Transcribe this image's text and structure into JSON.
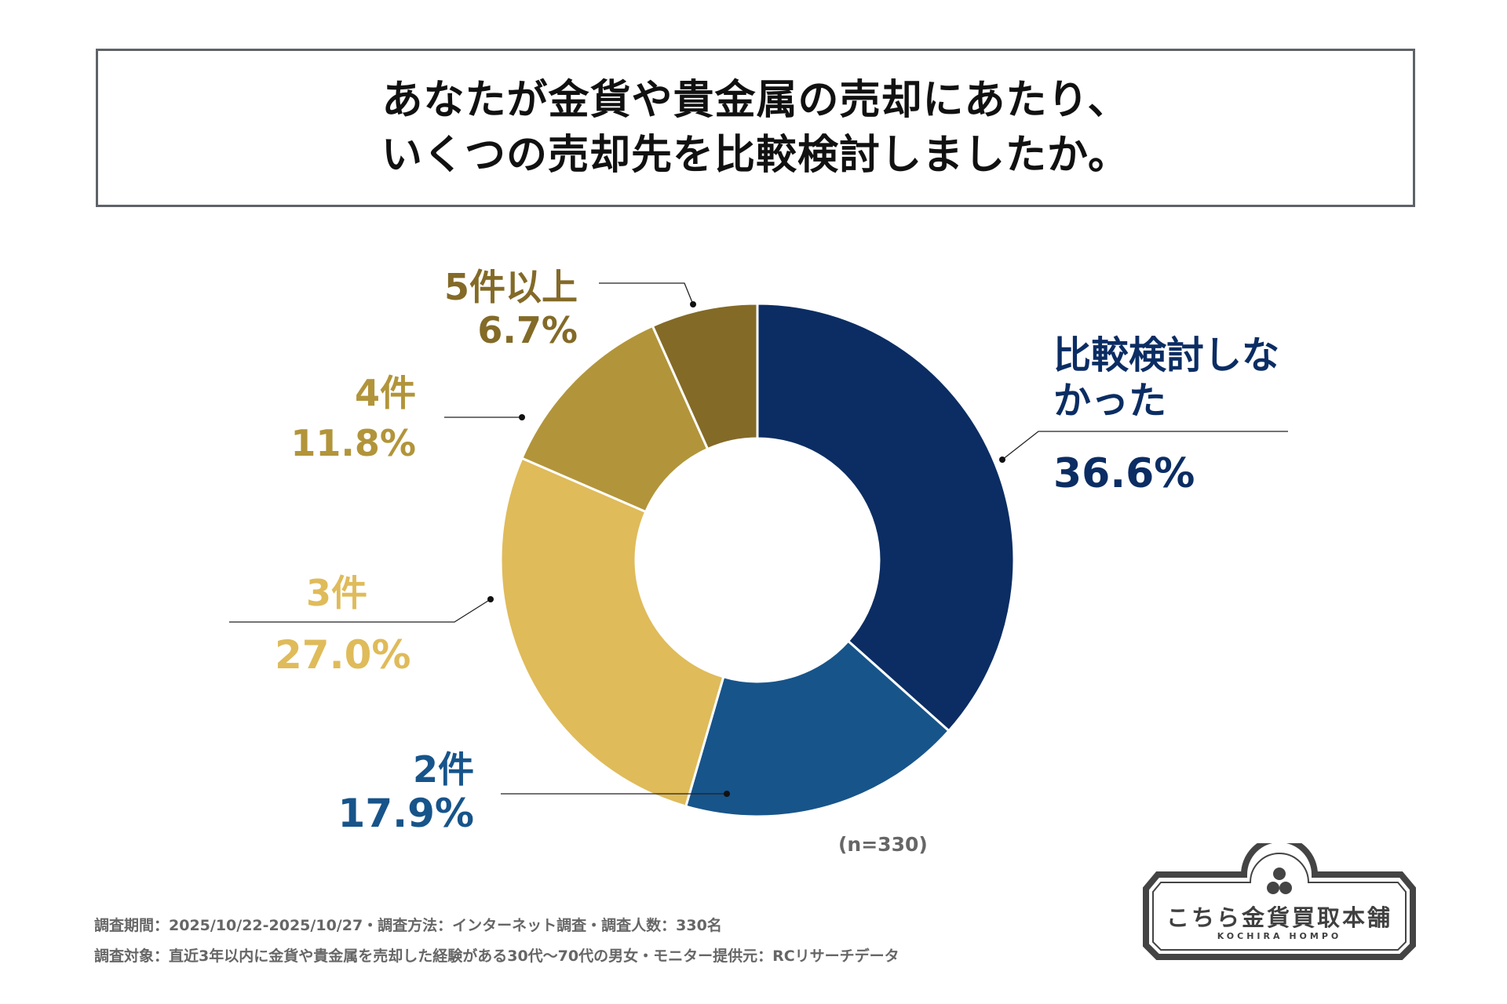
{
  "title": [
    "あなたが金貨や貴金属の売却にあたり、",
    "いくつの売却先を比較検討しましたか。"
  ],
  "chart_data": {
    "type": "pie",
    "variant": "donut",
    "title": "あなたが金貨や貴金属の売却にあたり、いくつの売却先を比較検討しましたか。",
    "categories": [
      "比較検討しなかった",
      "2件",
      "3件",
      "4件",
      "5件以上"
    ],
    "values": [
      36.6,
      17.9,
      27.0,
      11.8,
      6.7
    ],
    "value_labels": [
      "36.6%",
      "17.9%",
      "27.0%",
      "11.8%",
      "6.7%"
    ],
    "colors": [
      "#0b2d63",
      "#17548a",
      "#dfbb5a",
      "#b2953a",
      "#836a27"
    ],
    "start": "top",
    "direction": "clockwise",
    "legend": "none",
    "sample_note": "(n=330)"
  },
  "footer": [
    "調査期間：2025/10/22-2025/10/27・調査方法：インターネット調査・調査人数：330名",
    "調査対象：直近3年以内に金貨や貴金属を売却した経験がある30代～70代の男女・モニター提供元：RCリサーチデータ"
  ],
  "logo": {
    "name": "こちら金貨買取本舗",
    "sub": "KOCHIRA HOMPO"
  }
}
